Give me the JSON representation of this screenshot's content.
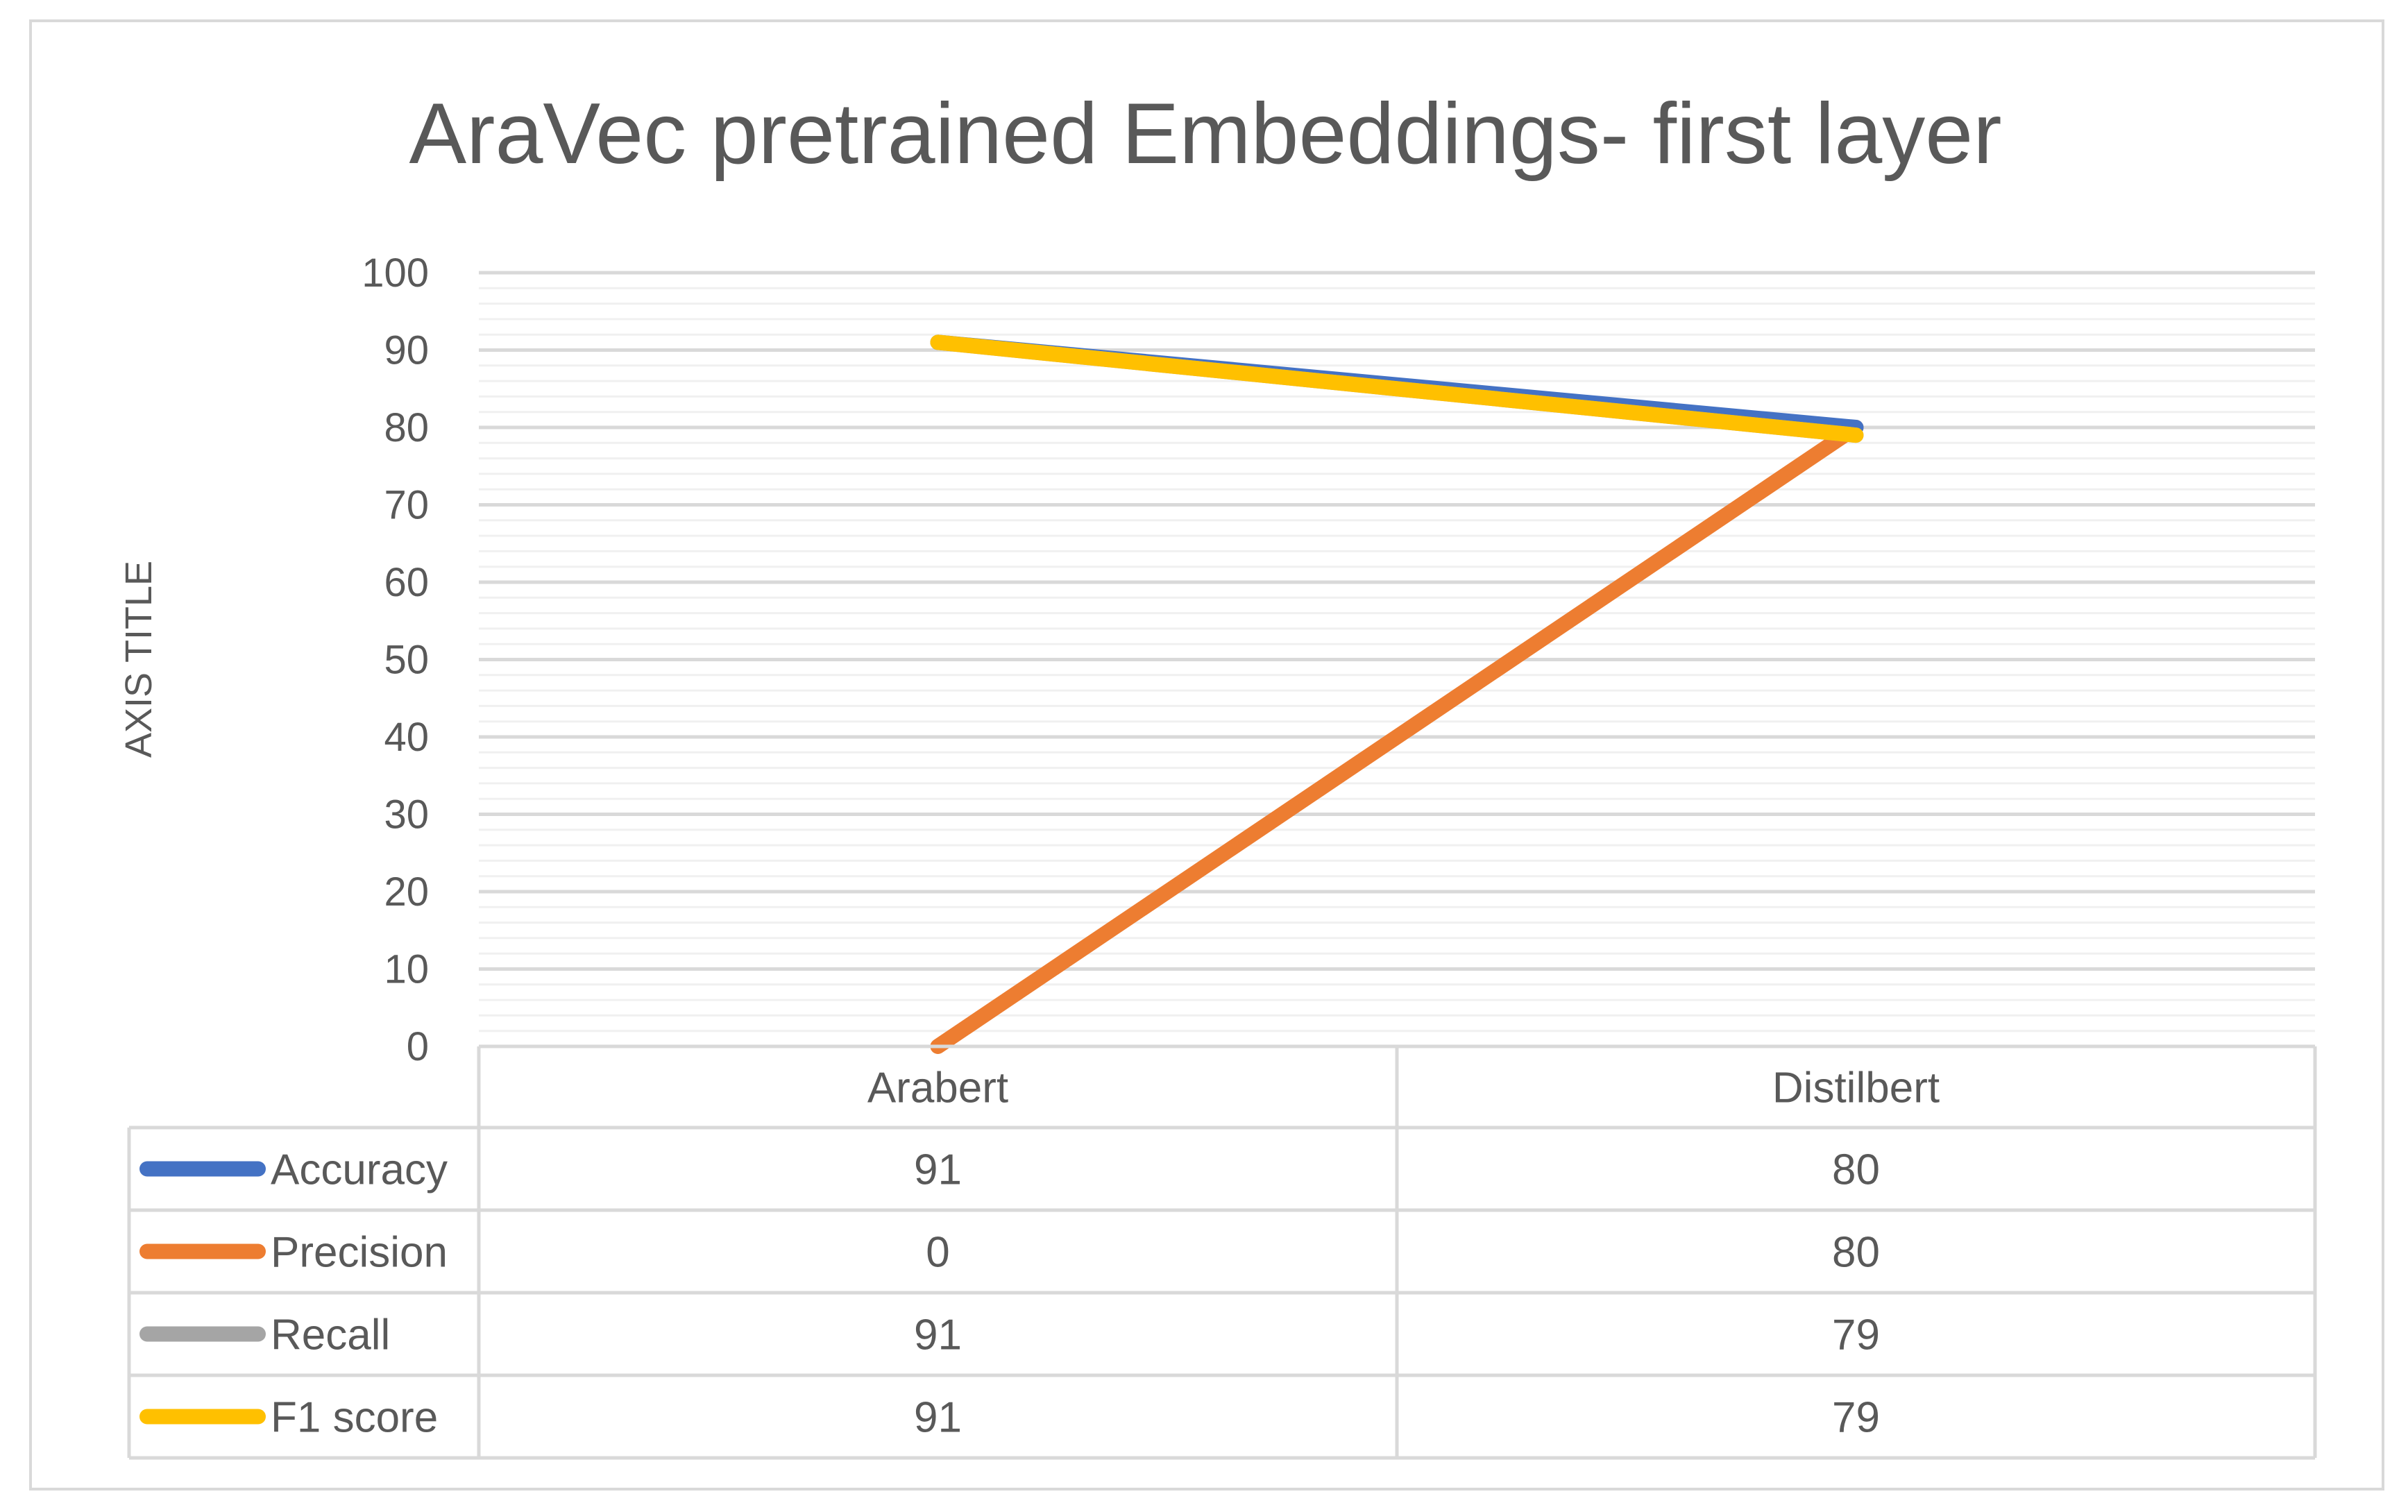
{
  "chart_data": {
    "type": "line",
    "title": "AraVec pretrained Embeddings- first layer",
    "xlabel": "",
    "ylabel": "AXIS TITLE",
    "categories": [
      "Arabert",
      "Distilbert"
    ],
    "ylim": [
      0,
      100
    ],
    "ytick_step": 10,
    "minor_grid_step": 2,
    "grid": true,
    "legend": "data-table",
    "series": [
      {
        "name": "Accuracy",
        "values": [
          91,
          80
        ],
        "color": "#4472C4"
      },
      {
        "name": "Precision",
        "values": [
          0,
          80
        ],
        "color": "#ED7D31"
      },
      {
        "name": "Recall",
        "values": [
          91,
          79
        ],
        "color": "#A5A5A5"
      },
      {
        "name": "F1 score",
        "values": [
          91,
          79
        ],
        "color": "#FFC000"
      }
    ]
  }
}
